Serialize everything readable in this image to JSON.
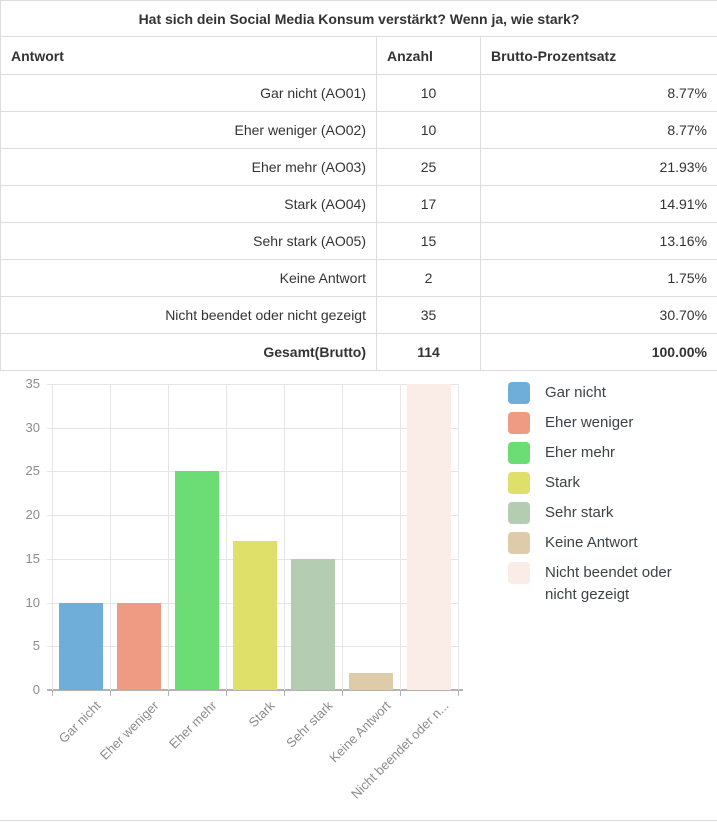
{
  "question_title": "Hat sich dein Social Media Konsum verstärkt? Wenn ja, wie stark?",
  "table": {
    "columns": {
      "antwort": "Antwort",
      "anzahl": "Anzahl",
      "prozent": "Brutto-Prozentsatz"
    },
    "rows": [
      {
        "antwort": "Gar nicht (AO01)",
        "anzahl": "10",
        "prozent": "8.77%"
      },
      {
        "antwort": "Eher weniger (AO02)",
        "anzahl": "10",
        "prozent": "8.77%"
      },
      {
        "antwort": "Eher mehr (AO03)",
        "anzahl": "25",
        "prozent": "21.93%"
      },
      {
        "antwort": "Stark (AO04)",
        "anzahl": "17",
        "prozent": "14.91%"
      },
      {
        "antwort": "Sehr stark (AO05)",
        "anzahl": "15",
        "prozent": "13.16%"
      },
      {
        "antwort": "Keine Antwort",
        "anzahl": "2",
        "prozent": "1.75%"
      },
      {
        "antwort": "Nicht beendet oder nicht gezeigt",
        "anzahl": "35",
        "prozent": "30.70%"
      },
      {
        "antwort": "Gesamt(Brutto)",
        "anzahl": "114",
        "prozent": "100.00%"
      }
    ],
    "total_row_label": "Gesamt(Brutto)"
  },
  "chart_data": {
    "type": "bar",
    "title": "",
    "xlabel": "",
    "ylabel": "",
    "categories": [
      "Gar nicht",
      "Eher weniger",
      "Eher mehr",
      "Stark",
      "Sehr stark",
      "Keine Antwort",
      "Nicht beendet oder nicht gezeigt"
    ],
    "x_tick_labels": [
      "Gar nicht",
      "Eher weniger",
      "Eher mehr",
      "Stark",
      "Sehr stark",
      "Keine Antwort",
      "Nicht beendet oder n..."
    ],
    "values": [
      10,
      10,
      25,
      17,
      15,
      2,
      35
    ],
    "bar_colors": [
      "#6faed9",
      "#ef9b84",
      "#6cdc75",
      "#dfe06a",
      "#b4ccb1",
      "#decba9",
      "#faede7"
    ],
    "ylim": [
      0,
      35
    ],
    "y_ticks": [
      35,
      30,
      25,
      20,
      15,
      10,
      5,
      0
    ],
    "grid": true,
    "legend_position": "right",
    "legend": [
      "Gar nicht",
      "Eher weniger",
      "Eher mehr",
      "Stark",
      "Sehr stark",
      "Keine Antwort",
      "Nicht beendet oder nicht gezeigt"
    ]
  },
  "colors": {
    "table_border": "#dddddd",
    "text": "#333333",
    "axis_text": "#8c8c8c",
    "gridline": "#e6e6e6",
    "axis_line": "#b3b3b3",
    "legend_text": "#3d4249",
    "divider": "#d9d9d9"
  }
}
